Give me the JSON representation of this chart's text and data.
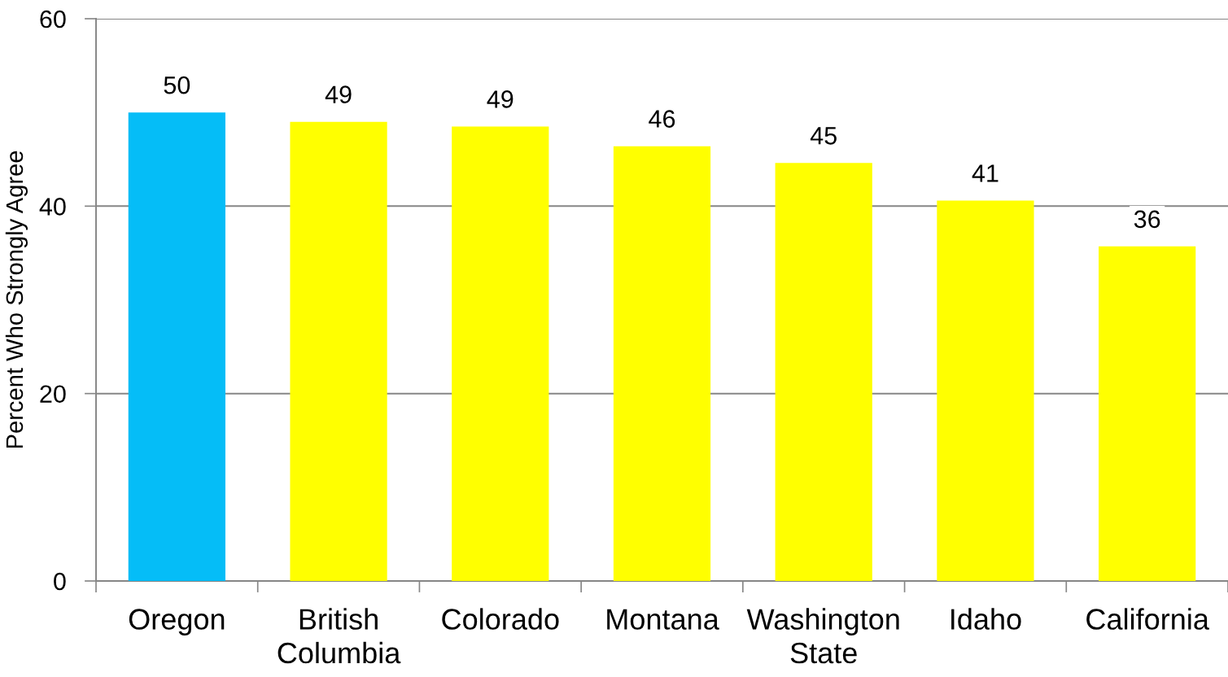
{
  "chart_data": {
    "type": "bar",
    "ylabel": "Percent Who Strongly Agree",
    "categories": [
      "Oregon",
      "British\nColumbia",
      "Colorado",
      "Montana",
      "Washington\nState",
      "Idaho",
      "California"
    ],
    "values": [
      50,
      49,
      48.5,
      46.4,
      44.6,
      40.6,
      35.7
    ],
    "value_labels": [
      "50",
      "49",
      "49",
      "46",
      "45",
      "41",
      "36"
    ],
    "colors": [
      "#05bdf7",
      "#ffff00",
      "#ffff00",
      "#ffff00",
      "#ffff00",
      "#ffff00",
      "#ffff00"
    ],
    "ylim": [
      0,
      60
    ],
    "yticks": [
      0,
      20,
      40,
      60
    ],
    "grid": "y"
  }
}
